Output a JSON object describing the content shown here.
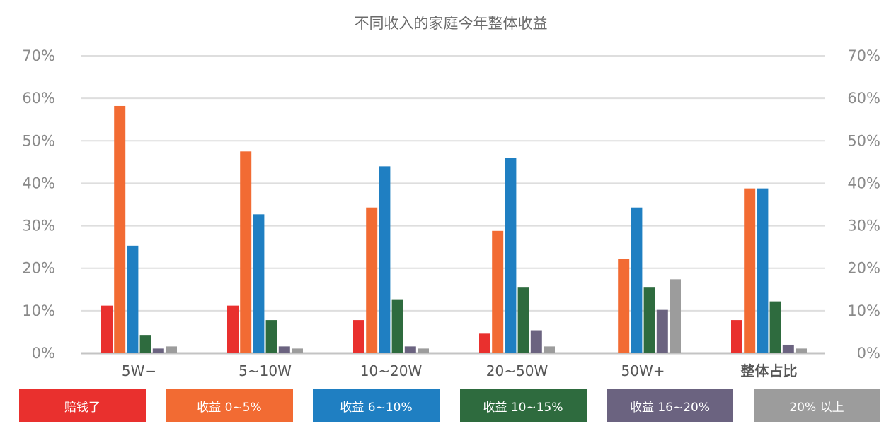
{
  "chart_data": {
    "type": "bar",
    "title": "不同收入的家庭今年整体收益",
    "categories": [
      "5W−",
      "5~10W",
      "10~20W",
      "20~50W",
      "50W+",
      "整体占比"
    ],
    "yticks": [
      "0%",
      "10%",
      "20%",
      "30%",
      "40%",
      "50%",
      "60%",
      "70%"
    ],
    "ylim": [
      0,
      70
    ],
    "y_unit": "%",
    "grid": true,
    "legend_position": "bottom",
    "dual_y_axis": true,
    "series": [
      {
        "name": "赔钱了",
        "color": "#e9302e",
        "values": [
          11.2,
          11.2,
          7.8,
          4.6,
          0,
          7.8
        ]
      },
      {
        "name": "收益 0~5%",
        "color": "#f26b33",
        "values": [
          58.2,
          47.5,
          34.3,
          28.8,
          22.2,
          38.8
        ]
      },
      {
        "name": "收益 6~10%",
        "color": "#1f7fc2",
        "values": [
          25.3,
          32.7,
          44.0,
          45.9,
          34.3,
          38.8
        ]
      },
      {
        "name": "收益 10~15%",
        "color": "#2e6b3e",
        "values": [
          4.3,
          7.8,
          12.7,
          15.6,
          15.6,
          12.2
        ]
      },
      {
        "name": "收益 16~20%",
        "color": "#6b6380",
        "values": [
          1.1,
          1.6,
          1.6,
          5.4,
          10.2,
          2.0
        ]
      },
      {
        "name": "20% 以上",
        "color": "#9c9c9c",
        "values": [
          1.6,
          1.1,
          1.1,
          1.6,
          17.4,
          1.1
        ]
      }
    ]
  }
}
